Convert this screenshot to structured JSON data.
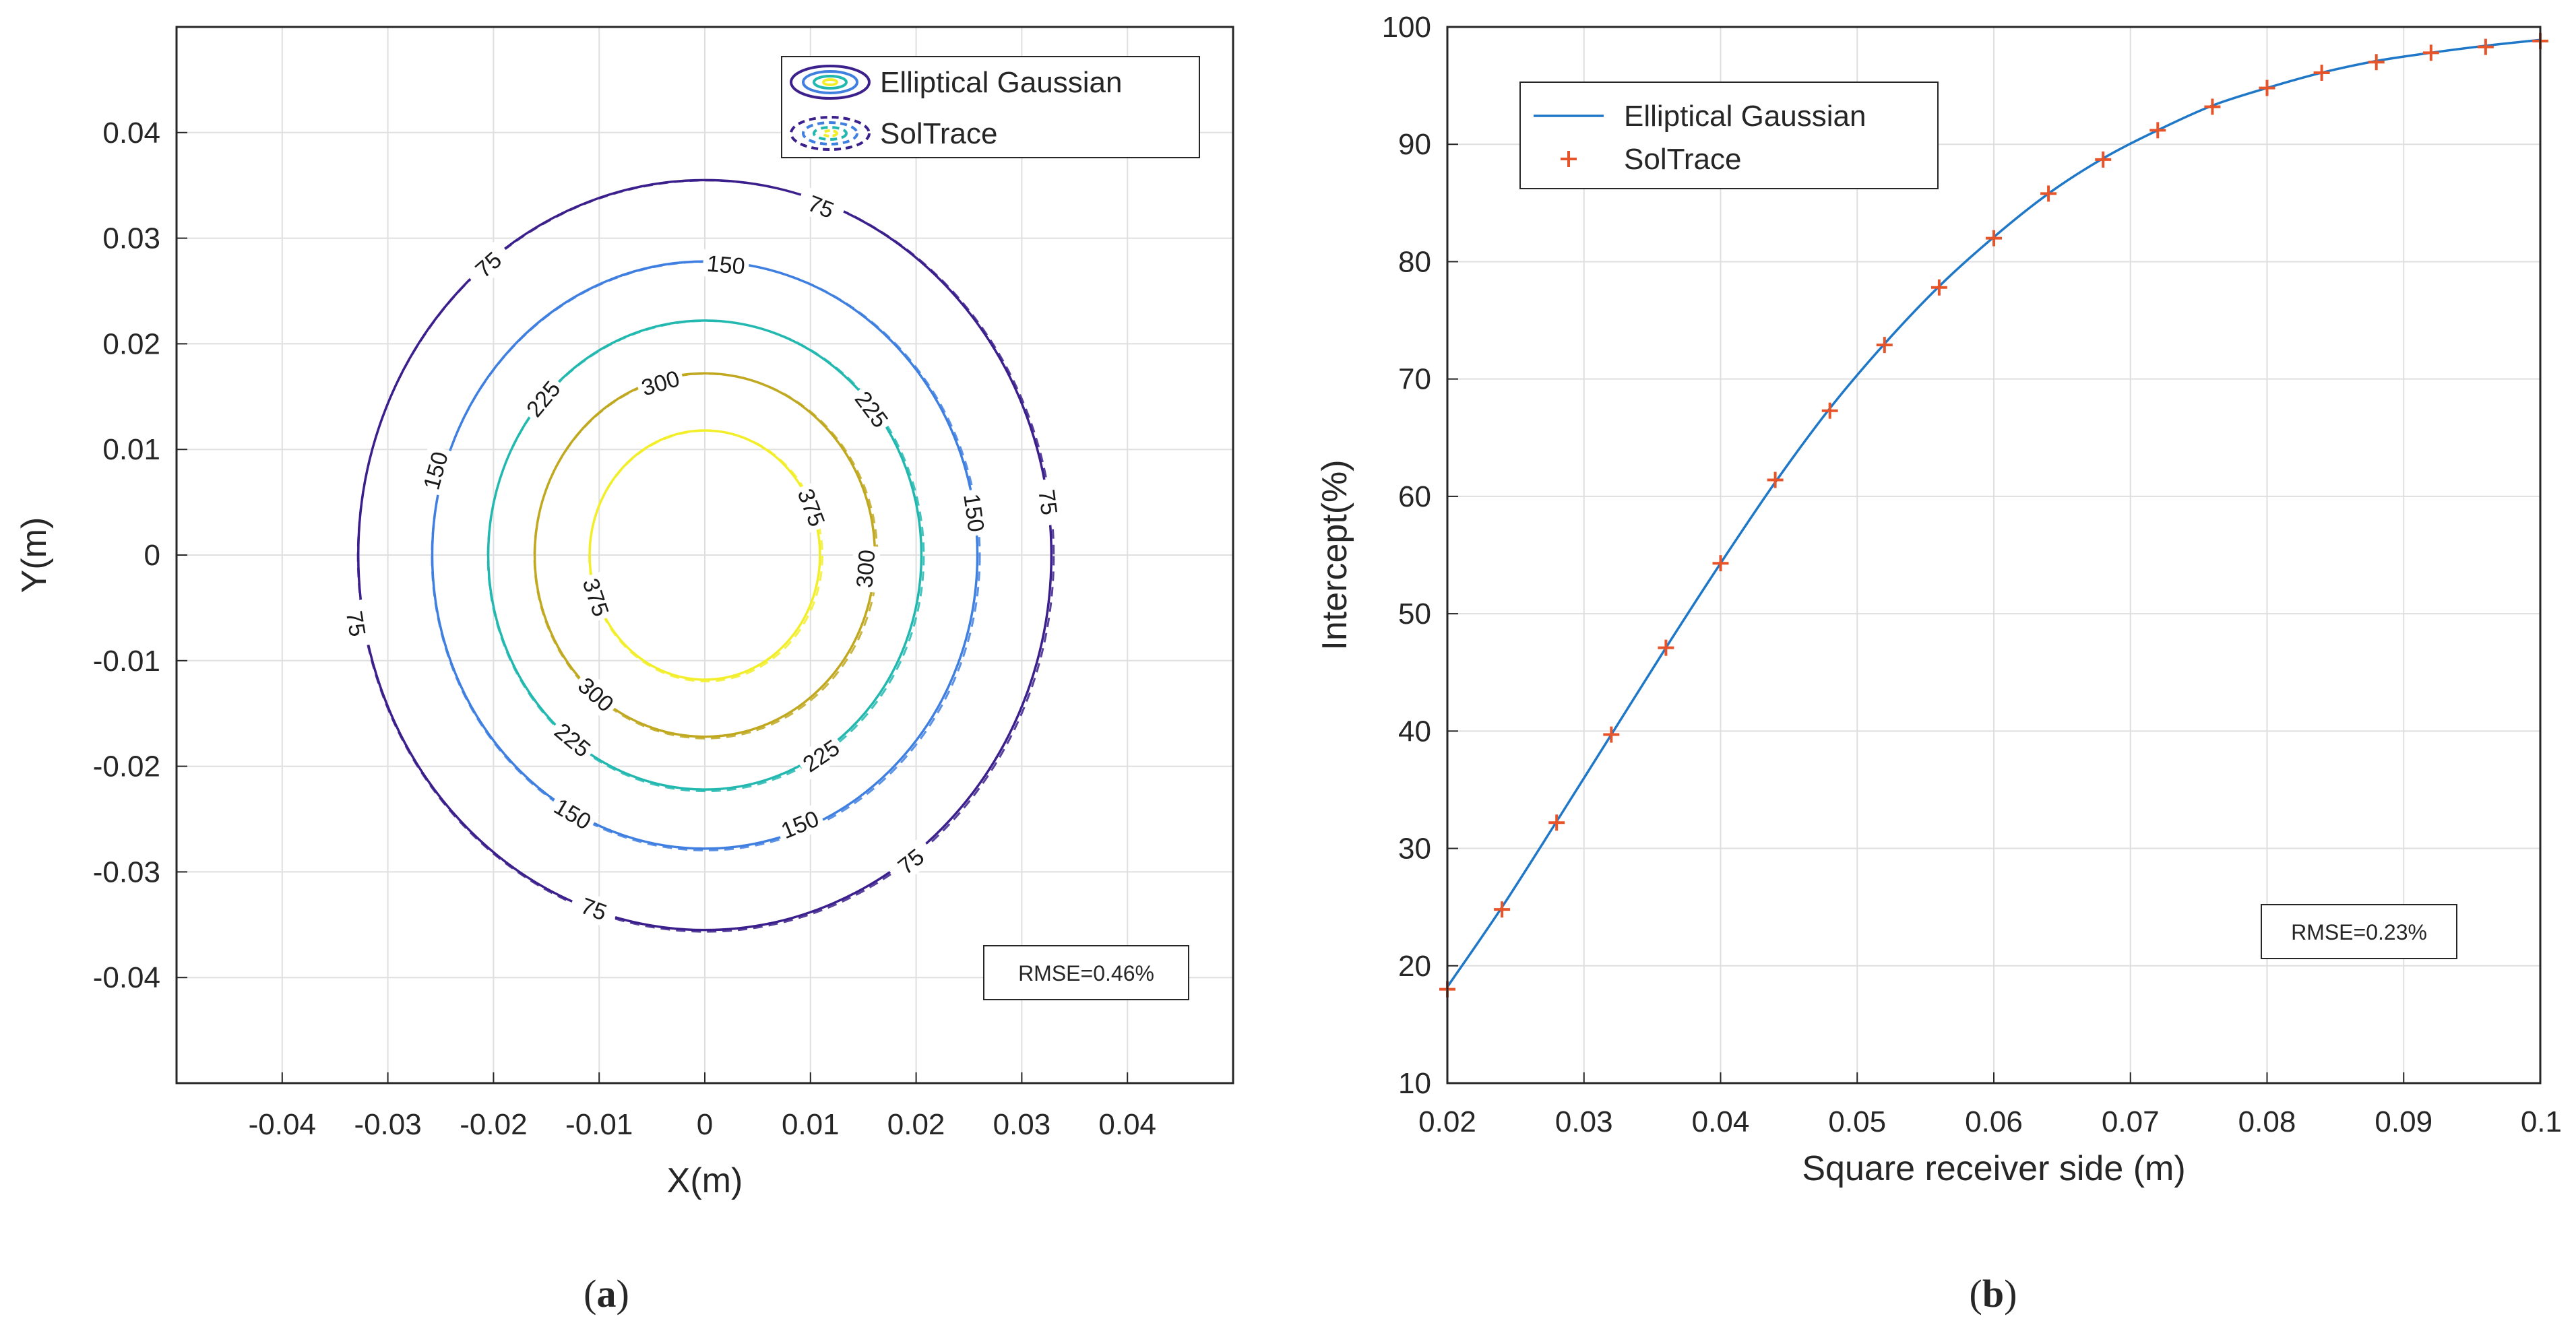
{
  "colors": {
    "contour_75": "#3b1f8c",
    "contour_150": "#3f7fe0",
    "contour_225": "#22b8b0",
    "contour_300": "#c0a820",
    "contour_375": "#f2ef2a",
    "gaussian_line": "#1f77c8",
    "soltrace_marker": "#e8542a",
    "axes": "#262626",
    "grid": "#dfdfdf"
  },
  "panels": {
    "a": {
      "label_prefix": "(",
      "label_letter": "a",
      "label_suffix": ")"
    },
    "b": {
      "label_prefix": "(",
      "label_letter": "b",
      "label_suffix": ")"
    }
  },
  "chart_data": [
    {
      "type": "contour",
      "title": "",
      "xlabel": "X(m)",
      "ylabel": "Y(m)",
      "xlim": [
        -0.05,
        0.05
      ],
      "ylim": [
        -0.05,
        0.05
      ],
      "xticks": [
        -0.04,
        -0.03,
        -0.02,
        -0.01,
        0,
        0.01,
        0.02,
        0.03,
        0.04
      ],
      "xtick_labels": [
        "-0.04",
        "-0.03",
        "-0.02",
        "-0.01",
        "0",
        "0.01",
        "0.02",
        "0.03",
        "0.04"
      ],
      "yticks": [
        -0.04,
        -0.03,
        -0.02,
        -0.01,
        0,
        0.01,
        0.02,
        0.03,
        0.04
      ],
      "ytick_labels": [
        "-0.04",
        "-0.03",
        "-0.02",
        "-0.01",
        "0",
        "0.01",
        "0.02",
        "0.03",
        "0.04"
      ],
      "grid": true,
      "legend": {
        "position": "top-right",
        "entries": [
          "Elliptical Gaussian",
          "SolTrace"
        ]
      },
      "annotation": "RMSE=0.46%",
      "levels": [
        {
          "value": 75,
          "label": "75",
          "rx": 0.0328,
          "ry": 0.0355,
          "color_key": "contour_75",
          "label_positions": [
            [
              0.011,
              0.033
            ],
            [
              -0.0205,
              0.0275
            ],
            [
              -0.033,
              -0.0065
            ],
            [
              0.0195,
              -0.029
            ],
            [
              -0.0105,
              -0.0335
            ],
            [
              0.0325,
              0.005
            ]
          ]
        },
        {
          "value": 150,
          "label": "150",
          "rx": 0.0258,
          "ry": 0.0278,
          "color_key": "contour_150",
          "label_positions": [
            [
              0.002,
              0.0275
            ],
            [
              -0.0255,
              0.008
            ],
            [
              0.0255,
              0.004
            ],
            [
              -0.0125,
              -0.0245
            ],
            [
              0.009,
              -0.0255
            ]
          ]
        },
        {
          "value": 225,
          "label": "225",
          "rx": 0.0205,
          "ry": 0.0222,
          "color_key": "contour_225",
          "label_positions": [
            [
              -0.0153,
              0.0148
            ],
            [
              0.0158,
              0.0138
            ],
            [
              -0.0125,
              -0.0175
            ],
            [
              0.011,
              -0.019
            ]
          ]
        },
        {
          "value": 300,
          "label": "300",
          "rx": 0.0161,
          "ry": 0.0172,
          "color_key": "contour_300",
          "label_positions": [
            [
              -0.0042,
              0.0163
            ],
            [
              0.0152,
              -0.0013
            ],
            [
              -0.0103,
              -0.0132
            ]
          ]
        },
        {
          "value": 375,
          "label": "375",
          "rx": 0.0109,
          "ry": 0.0118,
          "color_key": "contour_375",
          "label_positions": [
            [
              0.0101,
              0.0045
            ],
            [
              -0.0103,
              -0.004
            ]
          ]
        }
      ]
    },
    {
      "type": "line",
      "title": "",
      "xlabel": "Square receiver side (m)",
      "ylabel": "Intercept(%)",
      "xlim": [
        0.02,
        0.1
      ],
      "ylim": [
        10,
        100
      ],
      "xticks": [
        0.02,
        0.03,
        0.04,
        0.05,
        0.06,
        0.07,
        0.08,
        0.09,
        0.1
      ],
      "xtick_labels": [
        "0.02",
        "0.03",
        "0.04",
        "0.05",
        "0.06",
        "0.07",
        "0.08",
        "0.09",
        "0.1"
      ],
      "yticks": [
        10,
        20,
        30,
        40,
        50,
        60,
        70,
        80,
        90,
        100
      ],
      "ytick_labels": [
        "10",
        "20",
        "30",
        "40",
        "50",
        "60",
        "70",
        "80",
        "90",
        "100"
      ],
      "grid": true,
      "legend": {
        "position": "top-left"
      },
      "annotation": "RMSE=0.23%",
      "x": [
        0.02,
        0.024,
        0.028,
        0.032,
        0.036,
        0.04,
        0.044,
        0.048,
        0.052,
        0.056,
        0.06,
        0.064,
        0.068,
        0.072,
        0.076,
        0.08,
        0.084,
        0.088,
        0.092,
        0.096,
        0.1
      ],
      "series": [
        {
          "name": "Elliptical Gaussian",
          "style": "line",
          "values": [
            18.2,
            25.0,
            32.3,
            39.7,
            47.1,
            54.3,
            61.2,
            67.5,
            73.0,
            77.9,
            82.1,
            85.8,
            88.8,
            91.2,
            93.3,
            94.8,
            96.1,
            97.1,
            97.8,
            98.4,
            98.9
          ]
        },
        {
          "name": "SolTrace",
          "style": "marker",
          "values": [
            18.0,
            24.8,
            32.2,
            39.7,
            47.1,
            54.3,
            61.4,
            67.3,
            72.9,
            77.8,
            82.0,
            85.8,
            88.7,
            91.2,
            93.2,
            94.8,
            96.1,
            97.0,
            97.8,
            98.3,
            98.8
          ]
        }
      ]
    }
  ]
}
